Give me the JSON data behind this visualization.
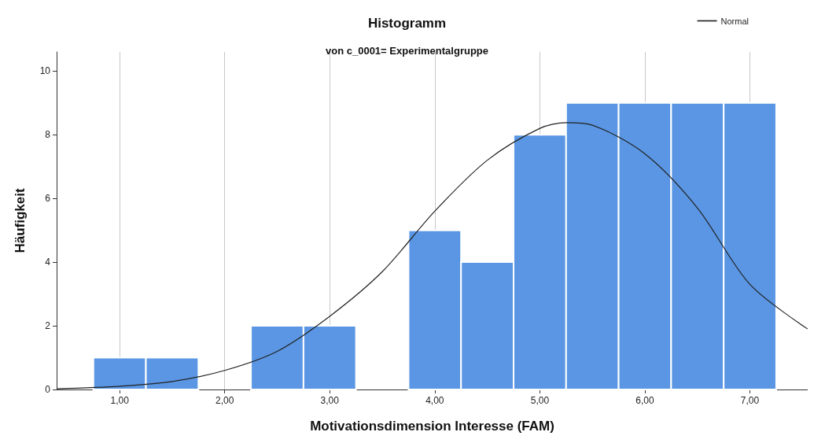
{
  "chart_data": {
    "type": "histogram",
    "title": "Histogramm",
    "subtitle": "von c_0001= Experimentalgruppe",
    "xlabel": "Motivationsdimension Interesse (FAM)",
    "ylabel": "Häufigkeit",
    "bins": [
      0.75,
      1.25,
      1.75,
      2.25,
      2.75,
      3.25,
      3.75,
      4.25,
      4.75,
      5.25,
      5.75,
      6.25,
      6.75,
      7.25
    ],
    "values": [
      1,
      1,
      0,
      2,
      2,
      0,
      5,
      4,
      8,
      9,
      9,
      9,
      9
    ],
    "color": "#5a96e3",
    "series": [
      {
        "name": "Normal",
        "type": "line",
        "color": "#222222",
        "x": [
          0.4,
          1.0,
          1.5,
          2.0,
          2.5,
          3.0,
          3.5,
          4.0,
          4.5,
          5.0,
          5.25,
          5.5,
          6.0,
          6.5,
          7.0,
          7.55
        ],
        "values": [
          0.02,
          0.1,
          0.25,
          0.6,
          1.2,
          2.3,
          3.7,
          5.6,
          7.2,
          8.2,
          8.38,
          8.3,
          7.4,
          5.7,
          3.3,
          1.9
        ]
      }
    ],
    "xlim": [
      0.4,
      7.55
    ],
    "xticks": [
      {
        "value": 1,
        "label": "1,00"
      },
      {
        "value": 2,
        "label": "2,00"
      },
      {
        "value": 3,
        "label": "3,00"
      },
      {
        "value": 4,
        "label": "4,00"
      },
      {
        "value": 5,
        "label": "5,00"
      },
      {
        "value": 6,
        "label": "6,00"
      },
      {
        "value": 7,
        "label": "7,00"
      }
    ],
    "ylim": [
      0,
      10.6
    ],
    "yticks": [
      0,
      2,
      4,
      6,
      8,
      10
    ],
    "grid": "x",
    "legend": "top right",
    "marker": "none"
  }
}
